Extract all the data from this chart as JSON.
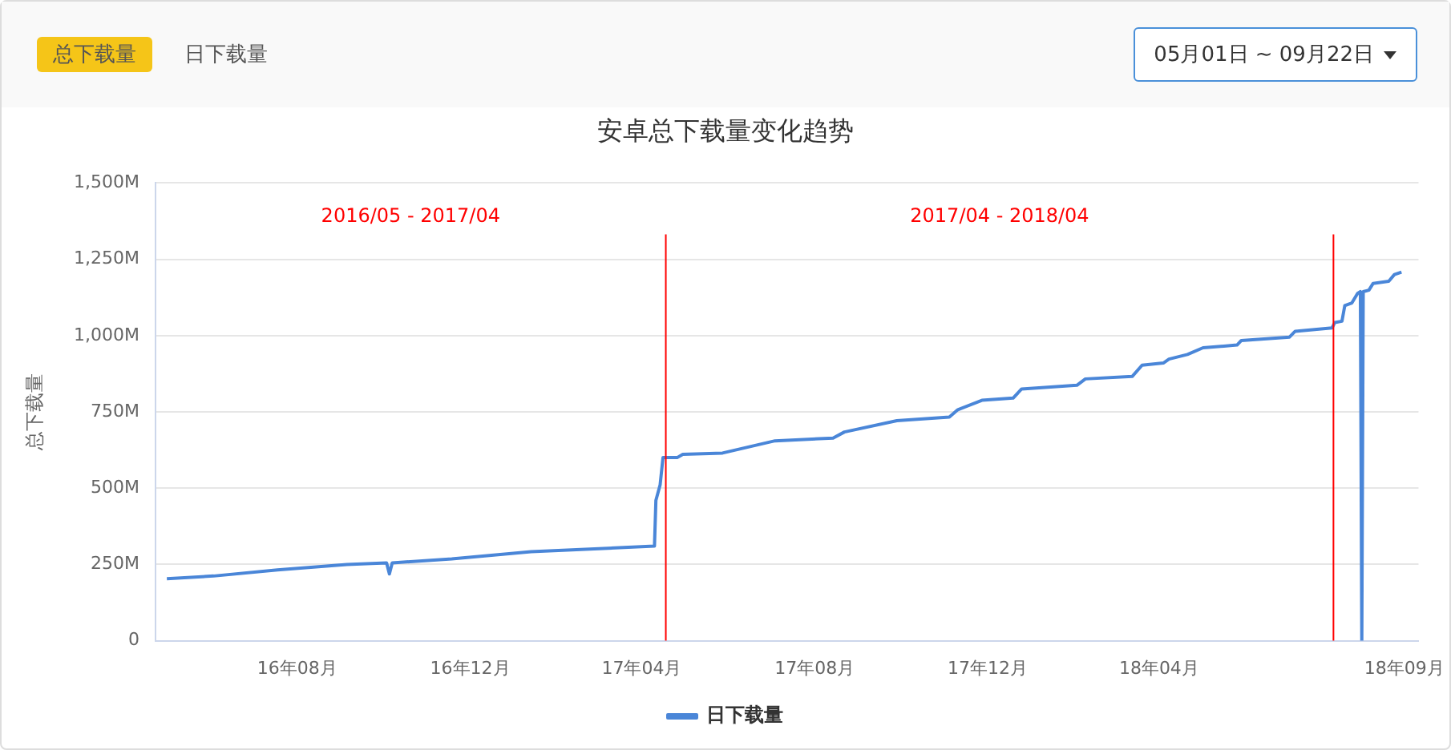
{
  "chart_data": {
    "type": "line",
    "title": "安卓总下载量变化趋势",
    "ylabel": "总下载量",
    "x": [
      "2016-05-01",
      "2016-06-03",
      "2016-07-18",
      "2016-09-05",
      "2016-10-03",
      "2016-10-05",
      "2016-10-07",
      "2016-11-18",
      "2017-01-13",
      "2017-04-10",
      "2017-04-11",
      "2017-04-14",
      "2017-04-16",
      "2017-04-26",
      "2017-04-30",
      "2017-05-28",
      "2017-07-04",
      "2017-08-14",
      "2017-08-22",
      "2017-09-28",
      "2017-11-04",
      "2017-11-10",
      "2017-11-27",
      "2017-12-19",
      "2017-12-25",
      "2018-02-02",
      "2018-02-08",
      "2018-03-13",
      "2018-03-20",
      "2018-04-04",
      "2018-04-08",
      "2018-04-21",
      "2018-05-02",
      "2018-05-26",
      "2018-05-29",
      "2018-07-02",
      "2018-07-06",
      "2018-08-01",
      "2018-08-03",
      "2018-08-08",
      "2018-08-10",
      "2018-08-15",
      "2018-08-19",
      "2018-08-21",
      "2018-08-22",
      "2018-08-23",
      "2018-08-27",
      "2018-08-30",
      "2018-09-10",
      "2018-09-14",
      "2018-09-19"
    ],
    "series": [
      {
        "name": "日下载量",
        "color": "#4a86d8",
        "values": [
          203,
          212,
          232,
          250,
          255,
          219,
          255,
          268,
          292,
          310,
          460,
          511,
          600,
          600,
          611,
          615,
          655,
          664,
          684,
          721,
          733,
          757,
          788,
          795,
          825,
          837,
          858,
          866,
          903,
          910,
          923,
          938,
          960,
          969,
          984,
          995,
          1014,
          1025,
          1043,
          1047,
          1098,
          1107,
          1138,
          1144,
          0,
          1144,
          1149,
          1171,
          1178,
          1200,
          1208
        ]
      }
    ],
    "xlim": [
      "2016-04-23",
      "2018-10-01"
    ],
    "xticks": [
      {
        "value": "2016-08-01",
        "label": "16年08月"
      },
      {
        "value": "2016-12-01",
        "label": "16年12月"
      },
      {
        "value": "2017-04-01",
        "label": "17年04月"
      },
      {
        "value": "2017-08-01",
        "label": "17年08月"
      },
      {
        "value": "2017-12-01",
        "label": "17年12月"
      },
      {
        "value": "2018-04-01",
        "label": "18年04月"
      },
      {
        "value": "2018-09-21",
        "label": "18年09月"
      }
    ],
    "ylim": [
      0,
      1500
    ],
    "yticks": [
      0,
      {
        "value": 250,
        "label": "250M"
      },
      {
        "value": 500,
        "label": "500M"
      },
      {
        "value": 750,
        "label": "750M"
      },
      {
        "value": 1000,
        "label": "1,000M"
      },
      {
        "value": 1250,
        "label": "1,250M"
      },
      {
        "value": 1500,
        "label": "1,500M"
      }
    ],
    "ref_lines": [
      {
        "axis": "x",
        "value": "2017-04-18",
        "color": "#ff0000"
      },
      {
        "axis": "x",
        "value": "2018-08-02",
        "color": "#ff0000"
      }
    ],
    "annotations": [
      "2016/05 - 2017/04",
      "2017/04 - 2018/04",
      "总下载量",
      "日下载量",
      "05月01日 ~ 09月22日"
    ],
    "grid": "y",
    "legend": "bottom"
  }
}
